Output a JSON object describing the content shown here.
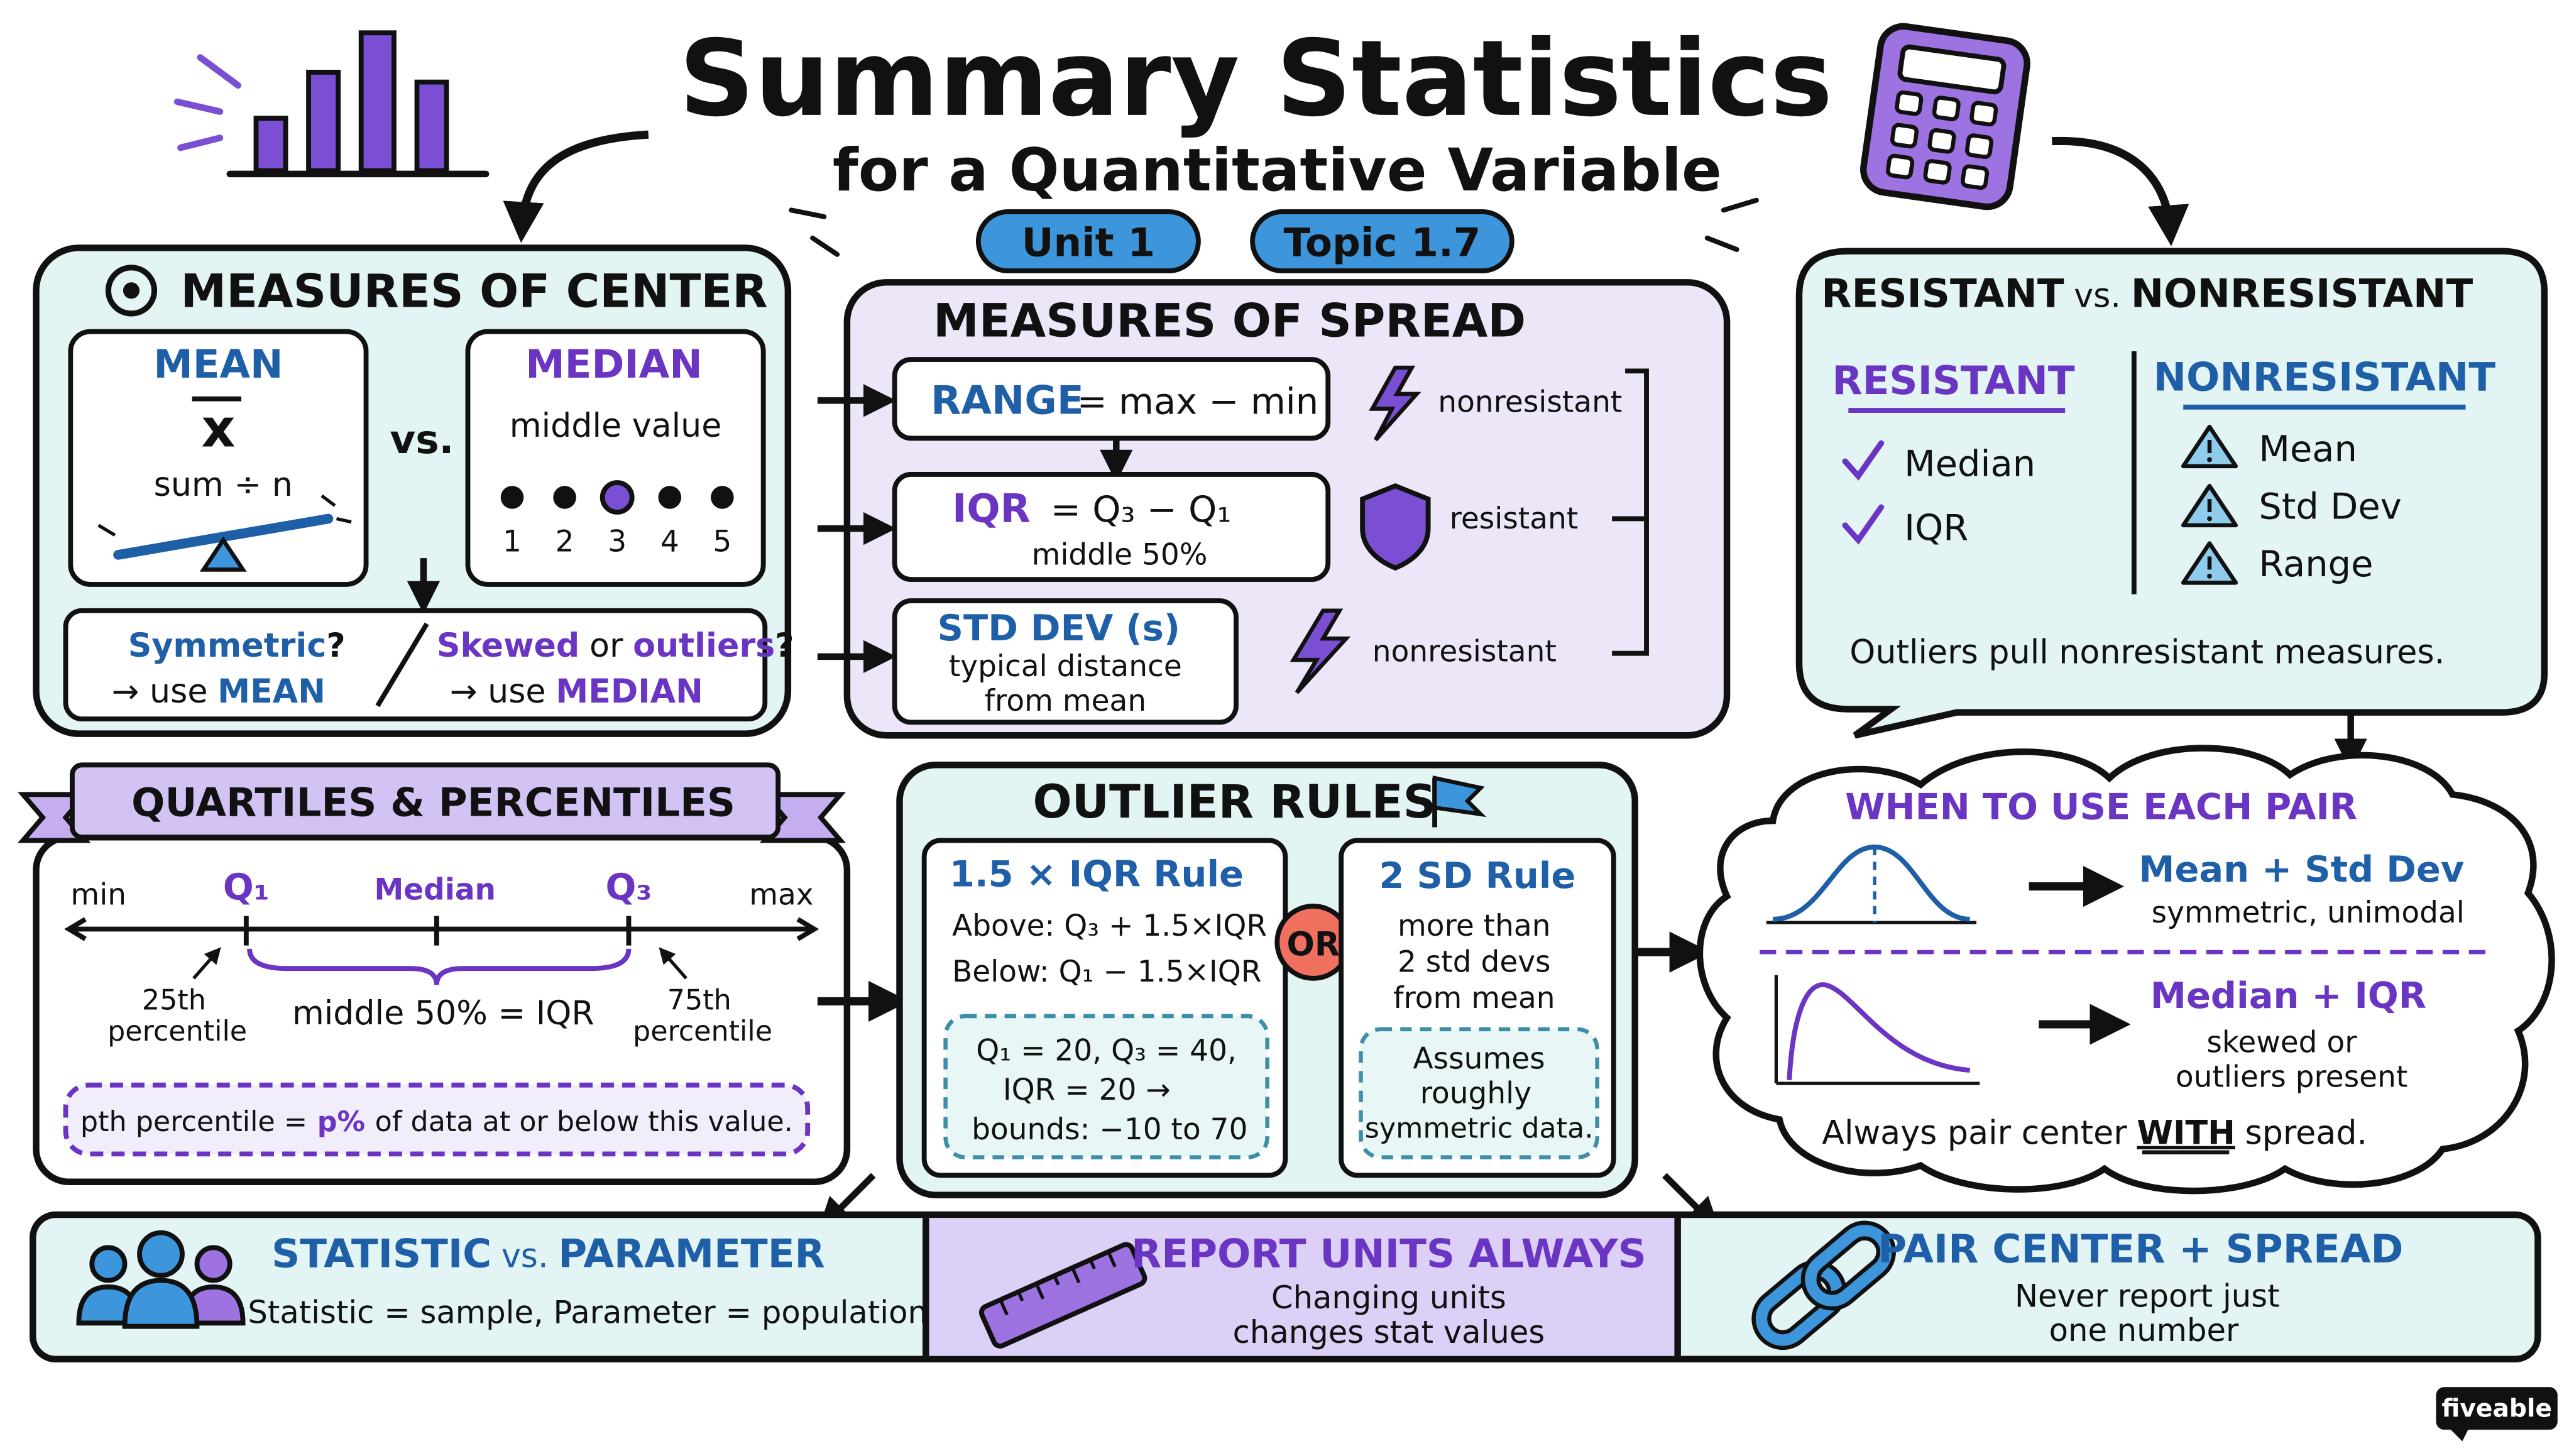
{
  "header": {
    "title": "Summary Statistics",
    "subtitle": "for a Quantitative Variable",
    "badge_unit": "Unit 1",
    "badge_topic": "Topic 1.7"
  },
  "center": {
    "title": "MEASURES OF CENTER",
    "mean_title": "MEAN",
    "mean_symbol": "x",
    "mean_formula": "sum ÷ n",
    "vs": "vs.",
    "median_title": "MEDIAN",
    "median_desc": "middle value",
    "median_numbers": [
      "1",
      "2",
      "3",
      "4",
      "5"
    ],
    "sym_label": "Symmetric",
    "q1": "?",
    "use_word": "→ use",
    "mean_word": "MEAN",
    "skew_label": "Skewed",
    "or_word": "or",
    "outliers_word": "outliers",
    "q2": "?",
    "median_word": "MEDIAN"
  },
  "spread": {
    "title": "MEASURES OF SPREAD",
    "range_name": "RANGE",
    "range_formula": "= max − min",
    "range_tag": "nonresistant",
    "iqr_name": "IQR",
    "iqr_formula": "= Q₃ − Q₁",
    "iqr_sub": "middle 50%",
    "iqr_tag": "resistant",
    "sd_name": "STD DEV (s)",
    "sd_line1": "typical distance",
    "sd_line2": "from mean",
    "sd_tag": "nonresistant"
  },
  "resist": {
    "title_a": "RESISTANT",
    "vs": "vs.",
    "title_b": "NONRESISTANT",
    "col_a": "RESISTANT",
    "col_b": "NONRESISTANT",
    "items_a": [
      "Median",
      "IQR"
    ],
    "items_b": [
      "Mean",
      "Std Dev",
      "Range"
    ],
    "note": "Outliers pull nonresistant measures."
  },
  "quartiles": {
    "title": "QUARTILES & PERCENTILES",
    "min": "min",
    "q1": "Q₁",
    "median": "Median",
    "q3": "Q₃",
    "max": "max",
    "p25a": "25th",
    "p25b": "percentile",
    "middle": "middle 50% = IQR",
    "p75a": "75th",
    "p75b": "percentile",
    "pth": "pth percentile =",
    "ppct": "p%",
    "pth_rest": "of data at or below this value."
  },
  "outlier": {
    "title": "OUTLIER RULES",
    "rule1": "1.5 × IQR Rule",
    "above": "Above:  Q₃ + 1.5×IQR",
    "below": "Below:  Q₁ − 1.5×IQR",
    "ex1": "Q₁ = 20,  Q₃ = 40,",
    "ex2": "IQR = 20  →",
    "ex3": "bounds:  −10 to 70",
    "or": "OR",
    "rule2": "2 SD Rule",
    "r2a": "more than",
    "r2b": "2 std devs",
    "r2c": "from mean",
    "as1": "Assumes",
    "as2": "roughly",
    "as3": "symmetric data."
  },
  "when": {
    "title": "WHEN TO USE EACH PAIR",
    "pair1": "Mean + Std Dev",
    "pair1_sub": "symmetric, unimodal",
    "pair2": "Median + IQR",
    "pair2_sub1": "skewed or",
    "pair2_sub2": "outliers present",
    "always": "Always pair center",
    "with": "WITH",
    "spread": "spread."
  },
  "footer": {
    "stat_a": "STATISTIC",
    "stat_vs": "vs.",
    "stat_b": "PARAMETER",
    "stat_sub": "Statistic = sample, Parameter = population",
    "units_title": "REPORT UNITS ALWAYS",
    "units_1": "Changing units",
    "units_2": "changes stat values",
    "pair_title": "PAIR CENTER + SPREAD",
    "pair_1": "Never report just",
    "pair_2": "one number"
  },
  "brand": "fiveable",
  "icons": [
    "bar-chart-icon",
    "calculator-icon",
    "target-icon",
    "seesaw-icon",
    "lightning-icon",
    "shield-icon",
    "check-icon",
    "warning-icon",
    "flag-icon",
    "people-icon",
    "ruler-icon",
    "chain-link-icon"
  ],
  "colors": {
    "teal_bg": "#e3f4f4",
    "lavender_bg": "#ece6f8",
    "blue": "#1f5fa8",
    "purple": "#6a35c2",
    "ink": "#111111",
    "or_red": "#f07060"
  }
}
